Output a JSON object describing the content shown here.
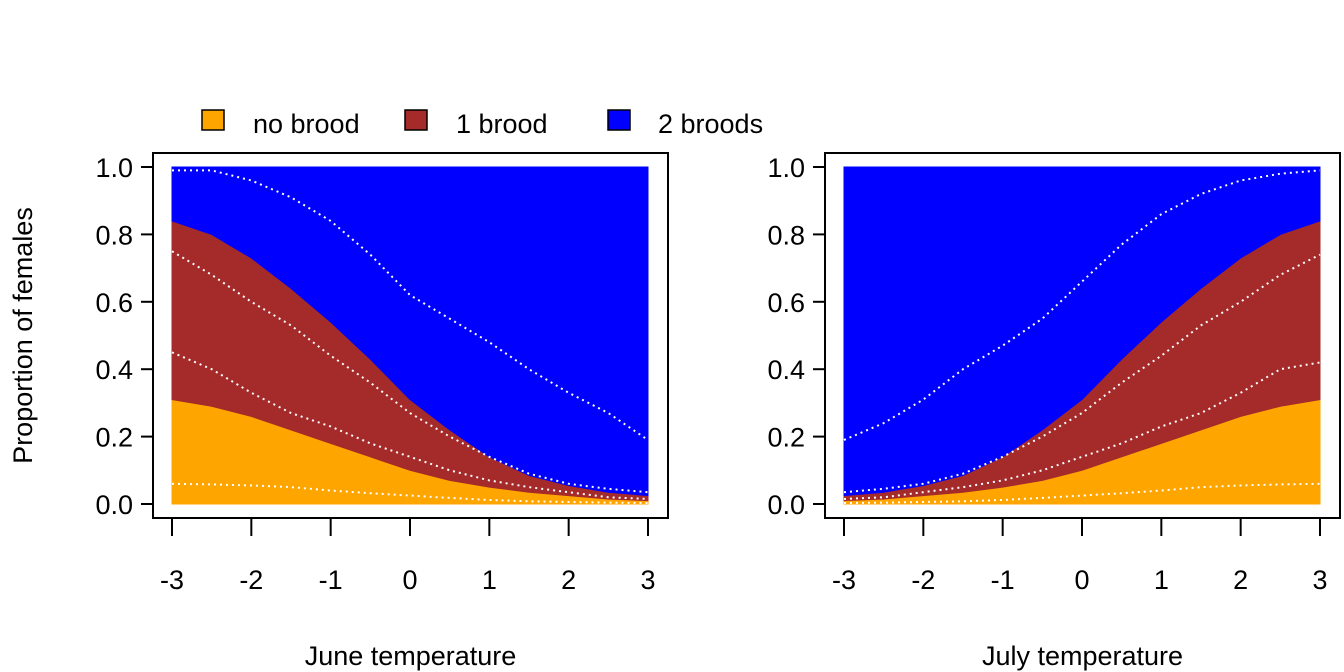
{
  "legend": {
    "items": [
      {
        "label": "no brood",
        "color": "#FFA500"
      },
      {
        "label": "1 brood",
        "color": "#A52A2A"
      },
      {
        "label": "2 broods",
        "color": "#0000FF"
      }
    ]
  },
  "chart_data": [
    {
      "type": "area",
      "title": "",
      "xlabel": "June temperature",
      "ylabel": "Proportion of females",
      "xlim": [
        -3,
        3
      ],
      "ylim": [
        0,
        1
      ],
      "xticks": [
        -3,
        -2,
        -1,
        0,
        1,
        2,
        3
      ],
      "yticks": [
        "0.0",
        "0.2",
        "0.4",
        "0.6",
        "0.8",
        "1.0"
      ],
      "grid": false,
      "x": [
        -3,
        -2.5,
        -2,
        -1.5,
        -1,
        -0.5,
        0,
        0.5,
        1,
        1.5,
        2,
        2.5,
        3
      ],
      "series": [
        {
          "name": "no brood",
          "color": "#FFA500",
          "values": [
            0.31,
            0.29,
            0.26,
            0.22,
            0.18,
            0.14,
            0.1,
            0.07,
            0.05,
            0.035,
            0.025,
            0.015,
            0.01
          ]
        },
        {
          "name": "1 brood",
          "color": "#A52A2A",
          "values": [
            0.53,
            0.51,
            0.47,
            0.42,
            0.36,
            0.29,
            0.21,
            0.15,
            0.09,
            0.05,
            0.03,
            0.02,
            0.015
          ]
        },
        {
          "name": "2 broods",
          "color": "#0000FF",
          "values": [
            0.16,
            0.2,
            0.27,
            0.36,
            0.46,
            0.57,
            0.69,
            0.78,
            0.86,
            0.915,
            0.945,
            0.965,
            0.975
          ]
        }
      ],
      "ci_lines": [
        [
          0.06,
          0.058,
          0.055,
          0.05,
          0.04,
          0.032,
          0.025,
          0.018,
          0.012,
          0.008,
          0.006,
          0.004,
          0.003
        ],
        [
          0.45,
          0.4,
          0.33,
          0.27,
          0.23,
          0.18,
          0.14,
          0.1,
          0.07,
          0.05,
          0.035,
          0.02,
          0.015
        ],
        [
          0.75,
          0.68,
          0.6,
          0.53,
          0.44,
          0.36,
          0.27,
          0.2,
          0.14,
          0.09,
          0.06,
          0.045,
          0.035
        ],
        [
          0.99,
          0.99,
          0.96,
          0.91,
          0.84,
          0.74,
          0.62,
          0.55,
          0.48,
          0.4,
          0.33,
          0.27,
          0.19
        ]
      ]
    },
    {
      "type": "area",
      "title": "",
      "xlabel": "July temperature",
      "ylabel": "",
      "xlim": [
        -3,
        3
      ],
      "ylim": [
        0,
        1
      ],
      "xticks": [
        -3,
        -2,
        -1,
        0,
        1,
        2,
        3
      ],
      "yticks": [
        "0.0",
        "0.2",
        "0.4",
        "0.6",
        "0.8",
        "1.0"
      ],
      "grid": false,
      "x": [
        -3,
        -2.5,
        -2,
        -1.5,
        -1,
        -0.5,
        0,
        0.5,
        1,
        1.5,
        2,
        2.5,
        3
      ],
      "series": [
        {
          "name": "no brood",
          "color": "#FFA500",
          "values": [
            0.01,
            0.015,
            0.025,
            0.035,
            0.05,
            0.07,
            0.1,
            0.14,
            0.18,
            0.22,
            0.26,
            0.29,
            0.31
          ]
        },
        {
          "name": "1 brood",
          "color": "#A52A2A",
          "values": [
            0.015,
            0.02,
            0.03,
            0.05,
            0.09,
            0.15,
            0.21,
            0.29,
            0.36,
            0.42,
            0.47,
            0.51,
            0.53
          ]
        },
        {
          "name": "2 broods",
          "color": "#0000FF",
          "values": [
            0.975,
            0.965,
            0.945,
            0.915,
            0.86,
            0.78,
            0.69,
            0.57,
            0.46,
            0.36,
            0.27,
            0.2,
            0.16
          ]
        }
      ],
      "ci_lines": [
        [
          0.003,
          0.004,
          0.006,
          0.008,
          0.012,
          0.018,
          0.025,
          0.032,
          0.04,
          0.05,
          0.055,
          0.058,
          0.06
        ],
        [
          0.015,
          0.02,
          0.035,
          0.05,
          0.07,
          0.1,
          0.14,
          0.18,
          0.23,
          0.27,
          0.33,
          0.4,
          0.42
        ],
        [
          0.035,
          0.045,
          0.06,
          0.09,
          0.14,
          0.2,
          0.27,
          0.36,
          0.44,
          0.53,
          0.6,
          0.68,
          0.74
        ],
        [
          0.19,
          0.24,
          0.31,
          0.4,
          0.47,
          0.55,
          0.66,
          0.77,
          0.86,
          0.92,
          0.96,
          0.98,
          0.99
        ]
      ]
    }
  ]
}
